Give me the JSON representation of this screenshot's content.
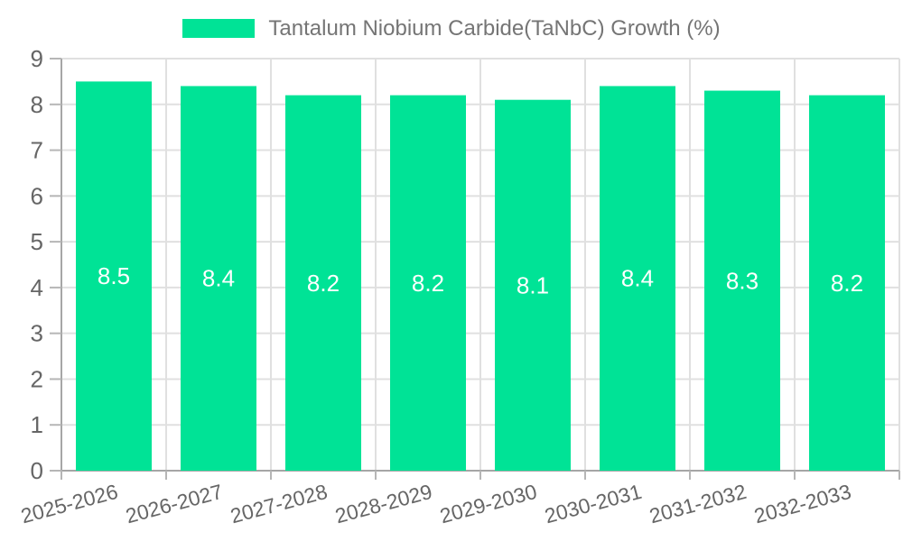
{
  "legend": {
    "label": "Tantalum Niobium Carbide(TaNbC) Growth (%)"
  },
  "colors": {
    "bar": "#00e396",
    "grid": "#e0e0e0",
    "axis": "#a6a6a6",
    "tick": "#b6b6b6",
    "axis_label": "#666666",
    "legend_text": "#757575",
    "data_label": "#ffffff",
    "background": "#ffffff"
  },
  "chart_data": {
    "type": "bar",
    "title": "",
    "xlabel": "",
    "ylabel": "",
    "categories": [
      "2025-2026",
      "2026-2027",
      "2027-2028",
      "2028-2029",
      "2029-2030",
      "2030-2031",
      "2031-2032",
      "2032-2033"
    ],
    "series": [
      {
        "name": "Tantalum Niobium Carbide(TaNbC) Growth (%)",
        "values": [
          8.5,
          8.4,
          8.2,
          8.2,
          8.1,
          8.4,
          8.3,
          8.2
        ]
      }
    ],
    "data_labels": [
      "8.5",
      "8.4",
      "8.2",
      "8.2",
      "8.1",
      "8.4",
      "8.3",
      "8.2"
    ],
    "ylim": [
      0,
      9
    ],
    "y_ticks": [
      0,
      1,
      2,
      3,
      4,
      5,
      6,
      7,
      8,
      9
    ],
    "grid": true,
    "legend_position": "top",
    "x_label_rotation": -15
  }
}
